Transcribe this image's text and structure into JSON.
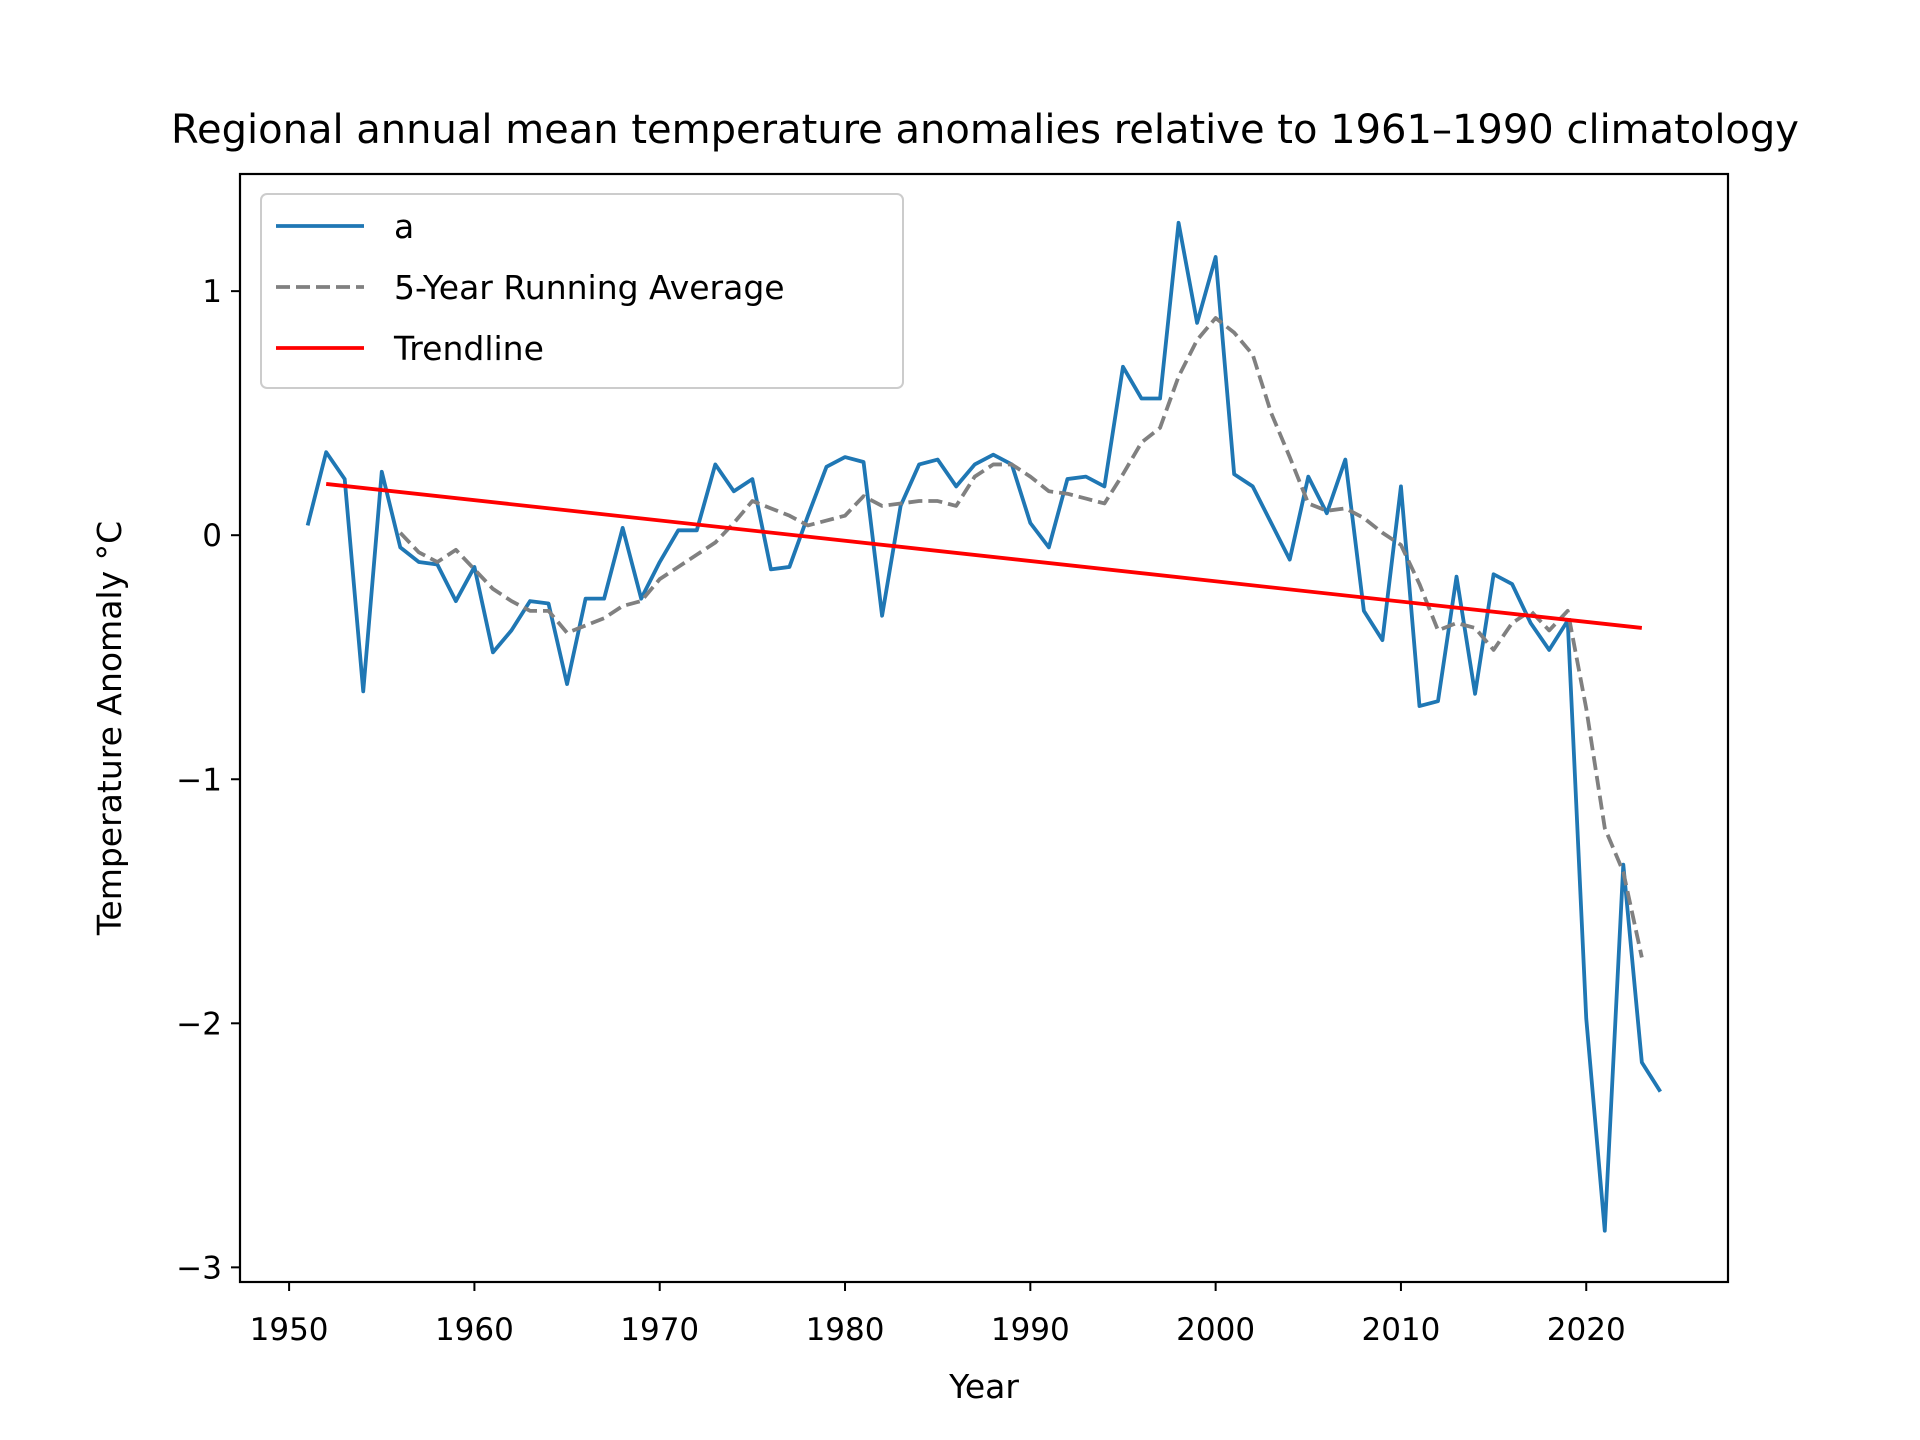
{
  "chart_data": {
    "type": "line",
    "title": "Regional annual mean temperature anomalies relative to 1961–1990 climatology",
    "xlabel": "Year",
    "ylabel": "Temperature Anomaly °C",
    "xlim": [
      1947.35,
      2027.65
    ],
    "ylim": [
      -3.06,
      1.48
    ],
    "xticks": [
      1950,
      1960,
      1970,
      1980,
      1990,
      2000,
      2010,
      2020
    ],
    "yticks": [
      1,
      0,
      -1,
      -2,
      -3
    ],
    "ytick_labels": [
      "1",
      "0",
      "−1",
      "−2",
      "−3"
    ],
    "grid": false,
    "legend_position": "upper-left",
    "series": [
      {
        "name": "a",
        "style": "solid",
        "color": "#1f77b4",
        "x": [
          1951,
          1952,
          1953,
          1954,
          1955,
          1956,
          1957,
          1958,
          1959,
          1960,
          1961,
          1962,
          1963,
          1964,
          1965,
          1966,
          1967,
          1968,
          1969,
          1970,
          1971,
          1972,
          1973,
          1974,
          1975,
          1976,
          1977,
          1978,
          1979,
          1980,
          1981,
          1982,
          1983,
          1984,
          1985,
          1986,
          1987,
          1988,
          1989,
          1990,
          1991,
          1992,
          1993,
          1994,
          1995,
          1996,
          1997,
          1998,
          1999,
          2000,
          2001,
          2002,
          2003,
          2004,
          2005,
          2006,
          2007,
          2008,
          2009,
          2010,
          2011,
          2012,
          2013,
          2014,
          2015,
          2016,
          2017,
          2018,
          2019,
          2020,
          2021,
          2022,
          2023,
          2024
        ],
        "y": [
          0.04,
          0.34,
          0.23,
          -0.64,
          0.26,
          -0.05,
          -0.11,
          -0.12,
          -0.27,
          -0.13,
          -0.48,
          -0.39,
          -0.27,
          -0.28,
          -0.61,
          -0.26,
          -0.26,
          0.03,
          -0.26,
          -0.11,
          0.02,
          0.02,
          0.29,
          0.18,
          0.23,
          -0.14,
          -0.13,
          0.08,
          0.28,
          0.32,
          0.3,
          -0.33,
          0.12,
          0.29,
          0.31,
          0.2,
          0.29,
          0.33,
          0.29,
          0.05,
          -0.05,
          0.23,
          0.24,
          0.2,
          0.69,
          0.56,
          0.56,
          1.28,
          0.87,
          1.14,
          0.25,
          0.2,
          0.05,
          -0.1,
          0.24,
          0.09,
          0.31,
          -0.31,
          -0.43,
          0.2,
          -0.7,
          -0.68,
          -0.17,
          -0.65,
          -0.16,
          -0.2,
          -0.36,
          -0.47,
          -0.35,
          -1.98,
          -2.85,
          -1.35,
          -2.16,
          -2.28
        ]
      },
      {
        "name": "5-Year Running Average",
        "style": "dashed",
        "color": "#808080",
        "x": [
          1956,
          1957,
          1958,
          1959,
          1960,
          1961,
          1962,
          1963,
          1964,
          1965,
          1966,
          1967,
          1968,
          1969,
          1970,
          1971,
          1972,
          1973,
          1974,
          1975,
          1976,
          1977,
          1978,
          1979,
          1980,
          1981,
          1982,
          1983,
          1984,
          1985,
          1986,
          1987,
          1988,
          1989,
          1990,
          1991,
          1992,
          1993,
          1994,
          1995,
          1996,
          1997,
          1998,
          1999,
          2000,
          2001,
          2002,
          2003,
          2004,
          2005,
          2006,
          2007,
          2008,
          2009,
          2010,
          2011,
          2012,
          2013,
          2014,
          2015,
          2016,
          2017,
          2018,
          2019,
          2020,
          2021,
          2022,
          2023
        ],
        "y": [
          0.01,
          -0.07,
          -0.11,
          -0.06,
          -0.14,
          -0.22,
          -0.27,
          -0.31,
          -0.31,
          -0.4,
          -0.37,
          -0.34,
          -0.29,
          -0.27,
          -0.18,
          -0.13,
          -0.08,
          -0.03,
          0.05,
          0.14,
          0.11,
          0.08,
          0.04,
          0.06,
          0.08,
          0.16,
          0.12,
          0.13,
          0.14,
          0.14,
          0.12,
          0.24,
          0.29,
          0.29,
          0.24,
          0.18,
          0.17,
          0.15,
          0.13,
          0.25,
          0.38,
          0.44,
          0.65,
          0.8,
          0.89,
          0.83,
          0.74,
          0.5,
          0.32,
          0.13,
          0.1,
          0.11,
          0.07,
          0.01,
          -0.04,
          -0.2,
          -0.39,
          -0.36,
          -0.38,
          -0.47,
          -0.36,
          -0.31,
          -0.39,
          -0.31,
          -0.71,
          -1.2,
          -1.38,
          -1.73
        ]
      },
      {
        "name": "Trendline",
        "style": "solid",
        "color": "#ff0000",
        "x": [
          1952,
          2023
        ],
        "y": [
          0.21,
          -0.38
        ]
      }
    ]
  }
}
